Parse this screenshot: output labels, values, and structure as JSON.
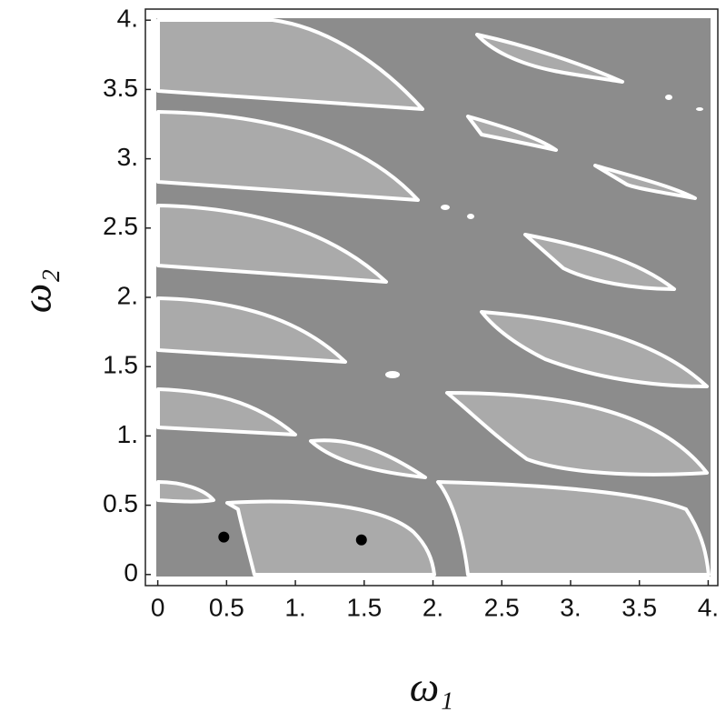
{
  "chart_data": {
    "type": "scatter",
    "xlabel": "ω₁",
    "ylabel": "ω₂",
    "x": [
      0.48,
      1.48
    ],
    "y": [
      0.27,
      0.25
    ],
    "color": "#000000",
    "xlim": [
      -0.09,
      4.07
    ],
    "ylim": [
      -0.08,
      4.08
    ],
    "xticks": [
      0,
      0.5,
      {
        "value": 1,
        "label": "1."
      },
      1.5,
      {
        "value": 2,
        "label": "2."
      },
      2.5,
      {
        "value": 3,
        "label": "3."
      },
      3.5,
      {
        "value": 4,
        "label": "4."
      }
    ],
    "yticks": [
      0,
      0.5,
      {
        "value": 1,
        "label": "1."
      },
      1.5,
      {
        "value": 2,
        "label": "2."
      },
      2.5,
      {
        "value": 3,
        "label": "3."
      },
      3.5,
      {
        "value": 4,
        "label": "4."
      }
    ]
  }
}
